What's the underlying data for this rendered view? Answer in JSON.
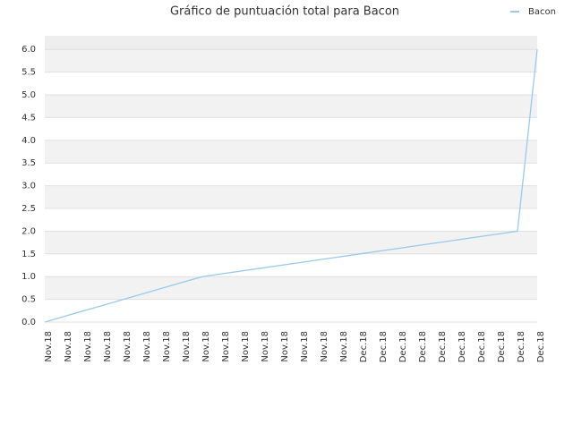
{
  "chart_data": {
    "type": "line",
    "title": "Gráfico de puntuación total para Bacon",
    "categories": [
      "Nov.18",
      "Nov.18",
      "Nov.18",
      "Nov.18",
      "Nov.18",
      "Nov.18",
      "Nov.18",
      "Nov.18",
      "Nov.18",
      "Nov.18",
      "Nov.18",
      "Nov.18",
      "Nov.18",
      "Nov.18",
      "Nov.18",
      "Nov.18",
      "Dec.18",
      "Dec.18",
      "Dec.18",
      "Dec.18",
      "Dec.18",
      "Dec.18",
      "Dec.18",
      "Dec.18",
      "Dec.18",
      "Dec.18"
    ],
    "series": [
      {
        "name": "Bacon",
        "color": "#99c9ee",
        "values": [
          0,
          0.125,
          0.25,
          0.375,
          0.5,
          0.625,
          0.75,
          0.875,
          1,
          1.0625,
          1.125,
          1.1875,
          1.25,
          1.3125,
          1.375,
          1.4375,
          1.5,
          1.5625,
          1.625,
          1.6875,
          1.75,
          1.8125,
          1.875,
          1.9375,
          2,
          6
        ]
      }
    ],
    "ylim": [
      0,
      6.3
    ],
    "yticks": [
      {
        "value": 0,
        "label": "0.0"
      },
      0.5,
      {
        "value": 1,
        "label": "1.0"
      },
      1.5,
      {
        "value": 2,
        "label": "2.0"
      },
      2.5,
      {
        "value": 3,
        "label": "3.0"
      },
      3.5,
      {
        "value": 4,
        "label": "4.0"
      },
      4.5,
      {
        "value": 5,
        "label": "5.0"
      },
      5.5,
      {
        "value": 6,
        "label": "6.0"
      }
    ],
    "grid": true,
    "legend": "top-right"
  }
}
